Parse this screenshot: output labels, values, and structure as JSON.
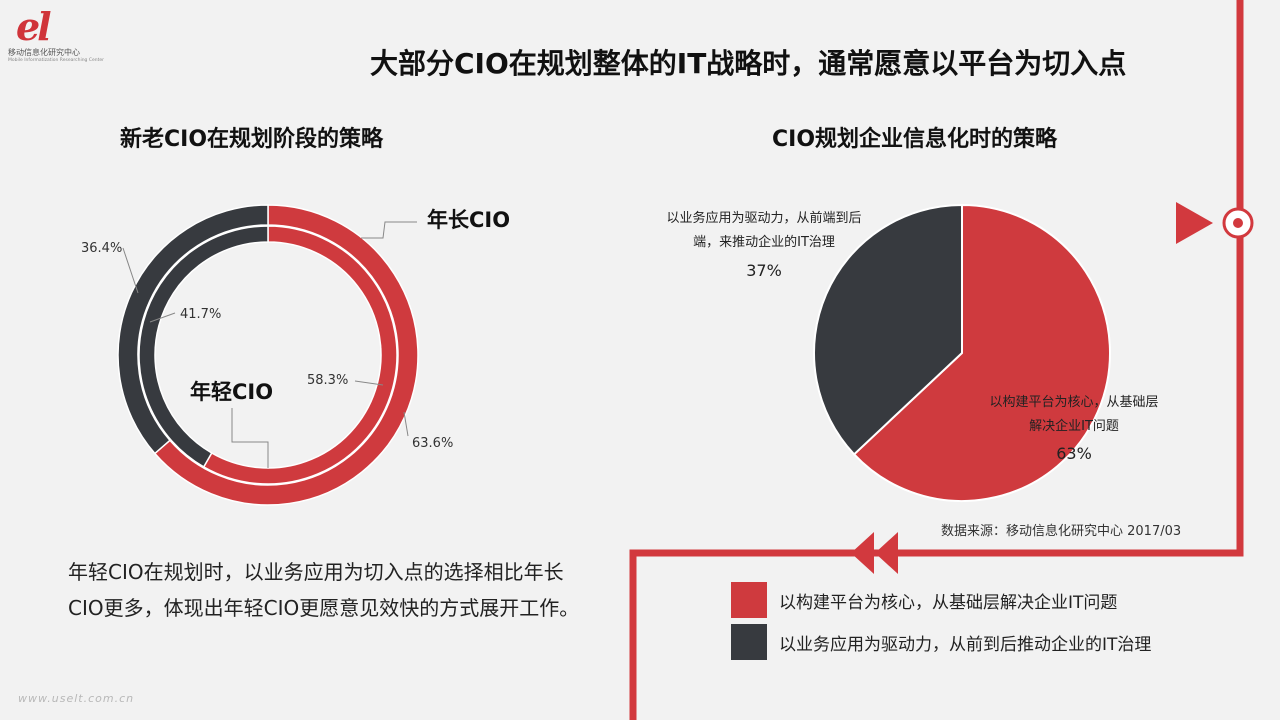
{
  "logo": {
    "mark": "el",
    "name_cn": "移动信息化研究中心",
    "name_en": "Mobile Informatization Researching Center"
  },
  "title": "大部分CIO在规划整体的IT战略时，通常愿意以平台为切入点",
  "colors": {
    "red": "#cf3a3e",
    "dark": "#373a3f",
    "line": "#d2393e"
  },
  "left_panel": {
    "title": "新老CIO在规划阶段的策略",
    "callouts": {
      "outer_ring": "年长CIO",
      "inner_ring": "年轻CIO"
    },
    "description": "年轻CIO在规划时，以业务应用为切入点的选择相比年长CIO更多，体现出年轻CIO更愿意见效快的方式展开工作。"
  },
  "right_panel": {
    "title": "CIO规划企业信息化时的策略",
    "source": "数据来源：移动信息化研究中心 2017/03"
  },
  "legend": [
    {
      "label": "以构建平台为核心，从基础层解决企业IT问题",
      "color": "#cf3a3e"
    },
    {
      "label": "以业务应用为驱动力，从前到后推动企业的IT治理",
      "color": "#373a3f"
    }
  ],
  "chart_data": [
    {
      "type": "donut",
      "rings": [
        {
          "name": "年长CIO",
          "values": [
            63.6,
            36.4
          ],
          "labels": [
            "63.6%",
            "36.4%"
          ]
        },
        {
          "name": "年轻CIO",
          "values": [
            58.3,
            41.7
          ],
          "labels": [
            "58.3%",
            "41.7%"
          ]
        }
      ],
      "colors": [
        "#cf3a3e",
        "#373a3f"
      ]
    },
    {
      "type": "pie",
      "categories": [
        "以构建平台为核心，从基础层解决企业IT问题",
        "以业务应用为驱动力，从前端到后端，来推动企业的IT治理"
      ],
      "slice_labels": [
        {
          "lines": [
            "以构建平台为核心，从基础层",
            "解决企业IT问题"
          ],
          "value": "63%"
        },
        {
          "lines": [
            "以业务应用为驱动力，从前端到后",
            "端，来推动企业的IT治理"
          ],
          "value": "37%"
        }
      ],
      "values": [
        63,
        37
      ],
      "colors": [
        "#cf3a3e",
        "#373a3f"
      ]
    }
  ],
  "watermark": "www.uselt.com.cn"
}
